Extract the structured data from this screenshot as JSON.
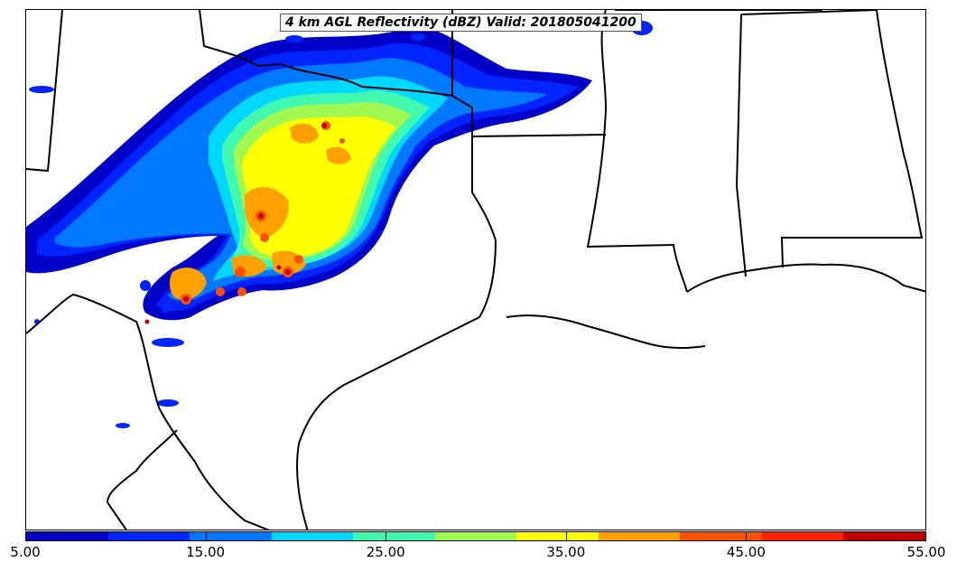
{
  "title": "4 km AGL Reflectivity (dBZ) Valid: 201805041200",
  "colorbar": {
    "min": 5,
    "max": 55,
    "levels": [
      5,
      10,
      15,
      20,
      25,
      30,
      35,
      40,
      45,
      50,
      55
    ],
    "colors": [
      "#0000c8",
      "#0024ff",
      "#0078ff",
      "#00d8ff",
      "#40f8b0",
      "#a0f850",
      "#ffff00",
      "#ffa000",
      "#ff5000",
      "#ff2000",
      "#c00000"
    ],
    "tick_labels": [
      "5.00",
      "15.00",
      "25.00",
      "35.00",
      "45.00",
      "55.00"
    ]
  },
  "map": {
    "field": "reflectivity",
    "units": "dBZ",
    "level": "4 km AGL",
    "valid_time": "201805041200",
    "border_color": "#000000",
    "background": "#ffffff"
  }
}
